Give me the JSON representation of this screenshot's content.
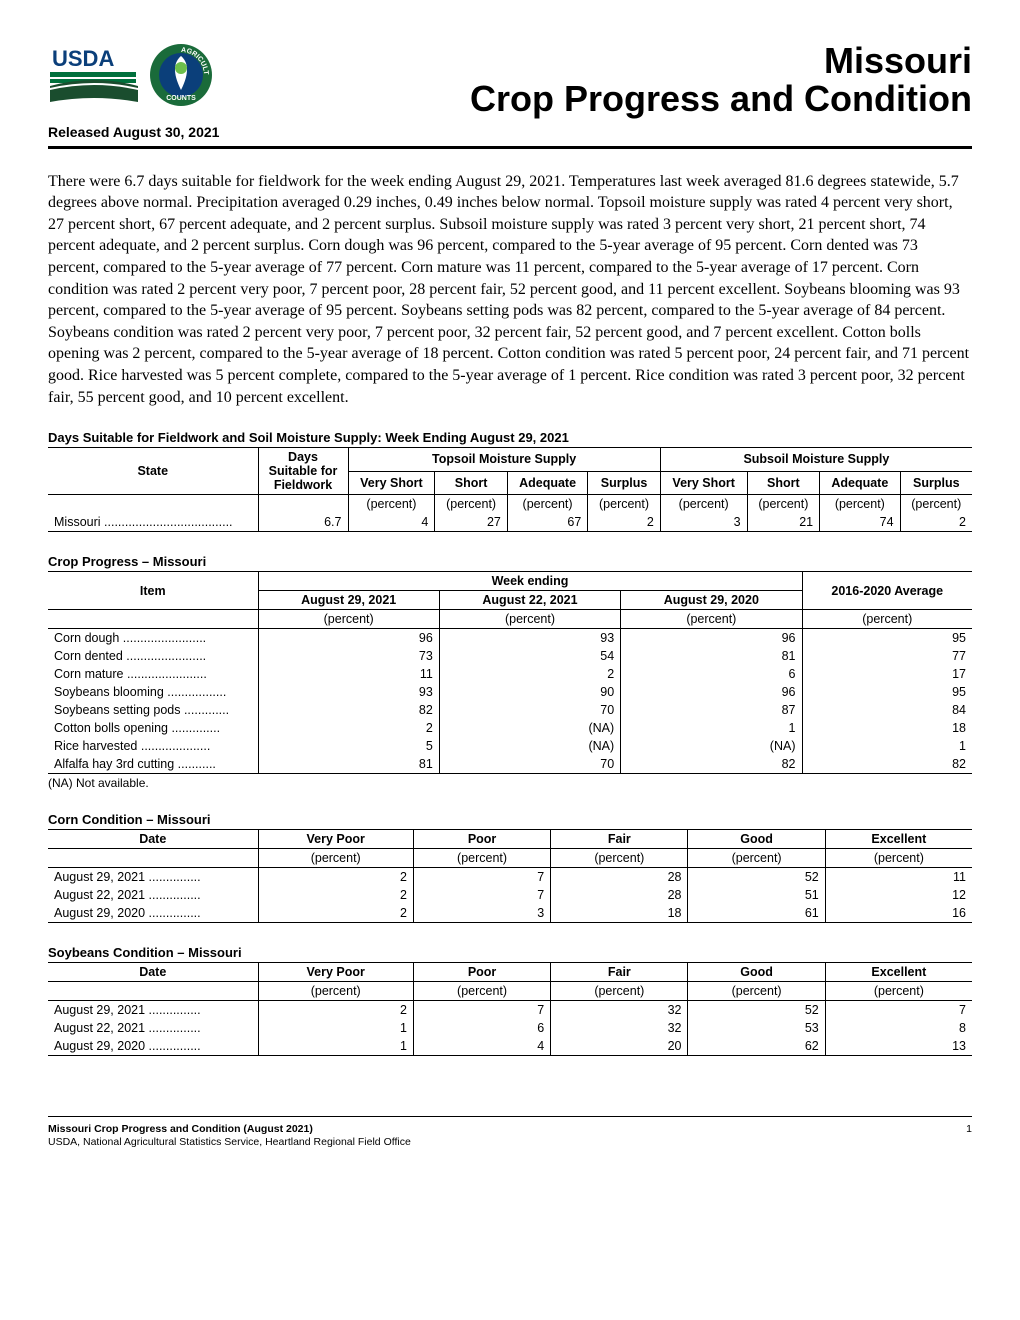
{
  "header": {
    "title_line1": "Missouri",
    "title_line2": "Crop Progress and Condition",
    "released": "Released August 30, 2021"
  },
  "logos": {
    "usda_text": "USDA",
    "usda_colors": {
      "top_bar": "#00703c",
      "mid_bar": "#005ea2",
      "field": "#1a4d2e",
      "white": "#ffffff"
    },
    "ag_counts_text_top": "AGRICULTURE",
    "ag_counts_text_bottom": "COUNTS",
    "ag_counts_colors": {
      "ring": "#1a6b3a",
      "inner": "#0b3f7a",
      "highlight": "#6dbf4b"
    }
  },
  "narrative": "There were 6.7 days suitable for fieldwork for the week ending August 29, 2021. Temperatures last week averaged 81.6 degrees statewide, 5.7 degrees above normal. Precipitation averaged 0.29 inches, 0.49 inches below normal. Topsoil moisture supply was rated 4 percent very short, 27 percent short, 67 percent adequate, and 2 percent surplus. Subsoil moisture supply was rated 3 percent very short, 21 percent short, 74 percent adequate, and 2 percent surplus. Corn dough was 96 percent, compared to the 5-year average of 95 percent. Corn dented was 73 percent, compared to the 5-year average of 77 percent. Corn mature was 11 percent, compared to the 5-year average of 17 percent. Corn condition was rated 2 percent very poor, 7 percent poor, 28 percent fair, 52 percent good, and 11 percent excellent. Soybeans blooming was 93 percent, compared to the 5-year average of 95 percent. Soybeans setting pods was 82 percent, compared to the 5-year average of 84 percent. Soybeans condition was rated 2 percent very poor, 7 percent poor, 32 percent fair, 52 percent good, and 7 percent excellent. Cotton bolls opening was 2 percent, compared to the 5-year average of 18 percent. Cotton condition was rated 5 percent poor, 24 percent fair, and 71 percent good. Rice harvested was 5 percent complete, compared to the 5-year average of 1 percent. Rice condition was rated 3 percent poor, 32 percent fair, 55 percent good, and 10 percent excellent.",
  "soil_table": {
    "title": "Days Suitable for Fieldwork and Soil Moisture Supply: Week Ending August 29, 2021",
    "col_state": "State",
    "col_days": "Days Suitable for Fieldwork",
    "group_topsoil": "Topsoil Moisture Supply",
    "group_subsoil": "Subsoil Moisture Supply",
    "sub_cols": [
      "Very Short",
      "Short",
      "Adequate",
      "Surplus"
    ],
    "unit": "(percent)",
    "row": {
      "state": "Missouri",
      "days": "6.7",
      "topsoil": [
        "4",
        "27",
        "67",
        "2"
      ],
      "subsoil": [
        "3",
        "21",
        "74",
        "2"
      ]
    }
  },
  "progress_table": {
    "title": "Crop Progress – Missouri",
    "col_item": "Item",
    "group_week": "Week ending",
    "col_dates": [
      "August 29, 2021",
      "August 22, 2021",
      "August 29, 2020"
    ],
    "col_avg": "2016-2020 Average",
    "unit": "(percent)",
    "rows": [
      {
        "item": "Corn dough",
        "vals": [
          "96",
          "93",
          "96",
          "95"
        ]
      },
      {
        "item": "Corn dented",
        "vals": [
          "73",
          "54",
          "81",
          "77"
        ]
      },
      {
        "item": "Corn mature",
        "vals": [
          "11",
          "2",
          "6",
          "17"
        ]
      },
      {
        "item": "Soybeans blooming",
        "vals": [
          "93",
          "90",
          "96",
          "95"
        ]
      },
      {
        "item": "Soybeans setting pods",
        "vals": [
          "82",
          "70",
          "87",
          "84"
        ]
      },
      {
        "item": "Cotton bolls opening",
        "vals": [
          "2",
          "(NA)",
          "1",
          "18"
        ]
      },
      {
        "item": "Rice harvested",
        "vals": [
          "5",
          "(NA)",
          "(NA)",
          "1"
        ]
      },
      {
        "item": "Alfalfa hay 3rd cutting",
        "vals": [
          "81",
          "70",
          "82",
          "82"
        ]
      }
    ],
    "note": "(NA) Not available."
  },
  "corn_cond": {
    "title": "Corn Condition – Missouri",
    "col_date": "Date",
    "cols": [
      "Very Poor",
      "Poor",
      "Fair",
      "Good",
      "Excellent"
    ],
    "unit": "(percent)",
    "rows": [
      {
        "date": "August 29, 2021",
        "vals": [
          "2",
          "7",
          "28",
          "52",
          "11"
        ]
      },
      {
        "date": "August 22, 2021",
        "vals": [
          "2",
          "7",
          "28",
          "51",
          "12"
        ]
      },
      {
        "date": "August 29, 2020",
        "vals": [
          "2",
          "3",
          "18",
          "61",
          "16"
        ]
      }
    ]
  },
  "soy_cond": {
    "title": "Soybeans Condition – Missouri",
    "col_date": "Date",
    "cols": [
      "Very Poor",
      "Poor",
      "Fair",
      "Good",
      "Excellent"
    ],
    "unit": "(percent)",
    "rows": [
      {
        "date": "August 29, 2021",
        "vals": [
          "2",
          "7",
          "32",
          "52",
          "7"
        ]
      },
      {
        "date": "August 22, 2021",
        "vals": [
          "1",
          "6",
          "32",
          "53",
          "8"
        ]
      },
      {
        "date": "August 29, 2020",
        "vals": [
          "1",
          "4",
          "20",
          "62",
          "13"
        ]
      }
    ]
  },
  "footer": {
    "left1": "Missouri Crop Progress and Condition (August 2021)",
    "left2": "USDA, National Agricultural Statistics Service, Heartland Regional Field Office",
    "page": "1"
  },
  "colors": {
    "text": "#000000",
    "background": "#ffffff",
    "rule": "#000000"
  }
}
